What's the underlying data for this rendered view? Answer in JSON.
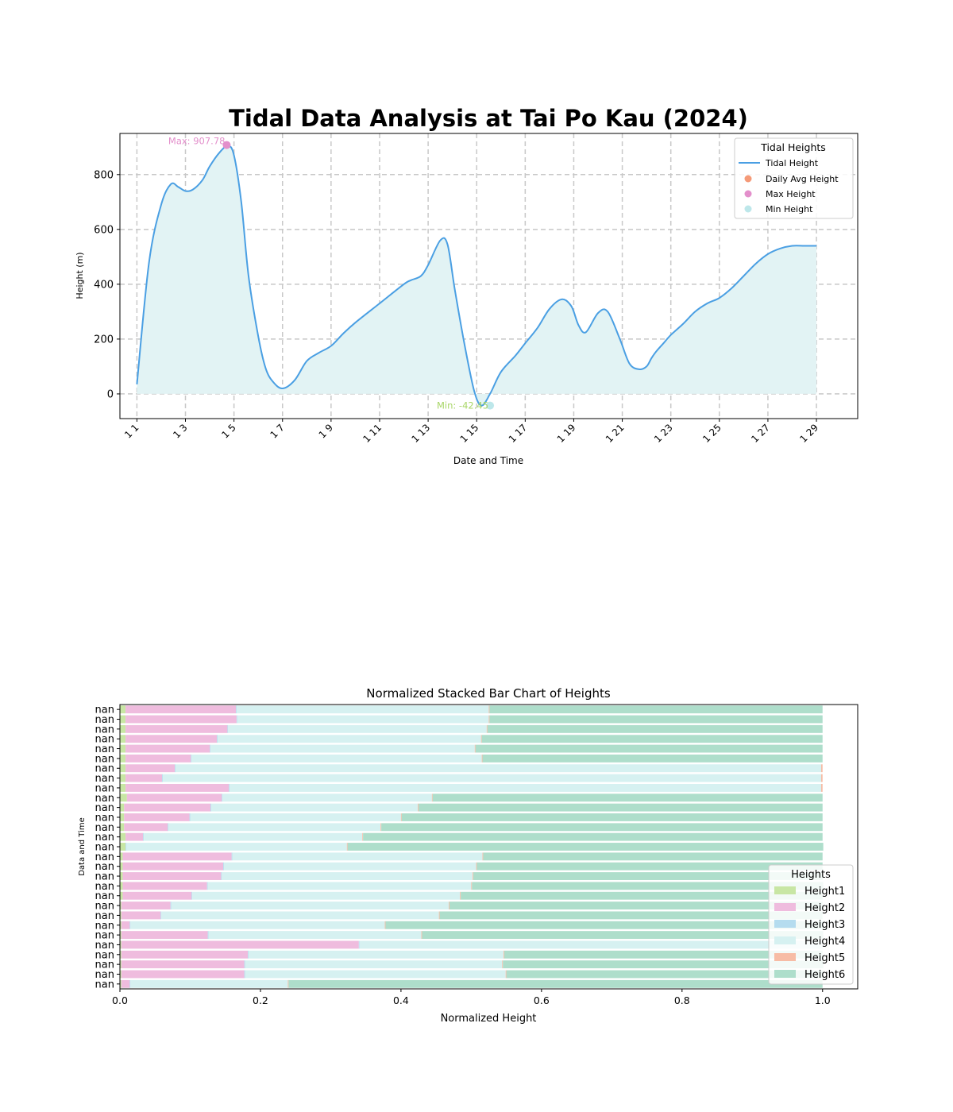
{
  "chart_data": [
    {
      "type": "line",
      "title": "Tidal Data Analysis at Tai Po Kau (2024)",
      "xlabel": "Date and Time",
      "ylabel": "Height (m)",
      "x_ticks": [
        "1 1",
        "1 3",
        "1 5",
        "1 7",
        "1 9",
        "1 11",
        "1 13",
        "1 15",
        "1 17",
        "1 19",
        "1 21",
        "1 23",
        "1 25",
        "1 27",
        "1 29"
      ],
      "y_ticks": [
        0,
        200,
        400,
        600,
        800
      ],
      "xlim_days": [
        0.3,
        30.7
      ],
      "ylim": [
        -90,
        950
      ],
      "grid": true,
      "legend": {
        "title": "Tidal Heights",
        "placement": "top-right",
        "entries": [
          "Tidal Height",
          "Daily Avg Height",
          "Max Height",
          "Min Height"
        ]
      },
      "colors": {
        "line": "#4a9fe3",
        "fill": "#e2f3f4",
        "avg": "#f59a78",
        "max": "#e38fcb",
        "min": "#bde7ea",
        "max_label": "#e38fcb",
        "min_label": "#a8d667"
      },
      "series": [
        {
          "name": "Tidal Height",
          "day": [
            1,
            1.5,
            2,
            2.4,
            2.7,
            3,
            3.3,
            3.7,
            4,
            4.4,
            4.75,
            5,
            5.3,
            5.6,
            6,
            6.3,
            6.6,
            7,
            7.5,
            8,
            8.5,
            9,
            9.5,
            10,
            11,
            12,
            12.3,
            12.7,
            13,
            13.5,
            13.8,
            14.1,
            14.5,
            14.9,
            15.2,
            15.55,
            16,
            16.6,
            17,
            17.5,
            18,
            18.5,
            18.9,
            19.2,
            19.5,
            20,
            20.4,
            20.9,
            21.3,
            21.7,
            22,
            22.2,
            22.4,
            22.7,
            23,
            23.5,
            24,
            24.5,
            25,
            25.5,
            26,
            26.5,
            27,
            27.5,
            28,
            28.5,
            29
          ],
          "height": [
            35,
            480,
            690,
            765,
            755,
            740,
            745,
            780,
            830,
            880,
            905,
            870,
            700,
            430,
            210,
            95,
            45,
            20,
            50,
            120,
            150,
            175,
            220,
            260,
            330,
            400,
            415,
            430,
            470,
            560,
            545,
            380,
            180,
            10,
            -42.45,
            0,
            80,
            140,
            185,
            240,
            310,
            345,
            320,
            250,
            225,
            295,
            300,
            200,
            110,
            90,
            100,
            130,
            155,
            185,
            215,
            255,
            300,
            330,
            350,
            385,
            430,
            475,
            510,
            530,
            540,
            540,
            540
          ]
        }
      ],
      "annotations": [
        {
          "label": "Max: 907.78",
          "day": 4.7,
          "value": 907.78
        },
        {
          "label": "Min: -42.45",
          "day": 15.55,
          "value": -42.45
        }
      ]
    },
    {
      "type": "bar",
      "orientation": "horizontal",
      "stacked": "normalized",
      "title": "Normalized Stacked Bar Chart of Heights",
      "xlabel": "Normalized Height",
      "ylabel": "Data and Time",
      "xlim": [
        0,
        1.05
      ],
      "x_ticks": [
        "0.0",
        "0.2",
        "0.4",
        "0.6",
        "0.8",
        "1.0"
      ],
      "categories": [
        "nan",
        "nan",
        "nan",
        "nan",
        "nan",
        "nan",
        "nan",
        "nan",
        "nan",
        "nan",
        "nan",
        "nan",
        "nan",
        "nan",
        "nan",
        "nan",
        "nan",
        "nan",
        "nan",
        "nan",
        "nan",
        "nan",
        "nan",
        "nan",
        "nan",
        "nan",
        "nan",
        "nan",
        "nan"
      ],
      "legend": {
        "title": "Heights",
        "placement": "lower-right"
      },
      "series": [
        {
          "name": "Height1",
          "color": "#c8e6a4",
          "values": [
            0.008,
            0.008,
            0.008,
            0.008,
            0.008,
            0.008,
            0.008,
            0.008,
            0.008,
            0.01,
            0.006,
            0.006,
            0.006,
            0.008,
            0.008,
            0.004,
            0.004,
            0.004,
            0.004,
            0.004,
            0.002,
            0.002,
            0.002,
            0.002,
            0.002,
            0.002,
            0.002,
            0.002,
            0.002
          ]
        },
        {
          "name": "Height2",
          "color": "#efbcde",
          "values": [
            0.157,
            0.158,
            0.145,
            0.13,
            0.12,
            0.093,
            0.07,
            0.052,
            0.147,
            0.135,
            0.123,
            0.093,
            0.062,
            0.025,
            0.0,
            0.155,
            0.143,
            0.14,
            0.12,
            0.098,
            0.07,
            0.056,
            0.012,
            0.123,
            0.338,
            0.18,
            0.175,
            0.175,
            0.012
          ]
        },
        {
          "name": "Height3",
          "color": "#b5dcef",
          "values": [
            0.001,
            0.001,
            0.001,
            0.001,
            0.001,
            0.001,
            0.001,
            0.001,
            0.001,
            0.001,
            0.001,
            0.001,
            0.001,
            0.001,
            0.001,
            0.001,
            0.001,
            0.001,
            0.001,
            0.001,
            0.001,
            0.001,
            0.001,
            0.001,
            0.001,
            0.001,
            0.001,
            0.001,
            0.001
          ]
        },
        {
          "name": "Height4",
          "color": "#d6f1f1",
          "values": [
            0.359,
            0.358,
            0.368,
            0.375,
            0.376,
            0.413,
            0.919,
            0.937,
            0.842,
            0.298,
            0.294,
            0.3,
            0.302,
            0.311,
            0.314,
            0.356,
            0.359,
            0.357,
            0.375,
            0.381,
            0.395,
            0.395,
            0.362,
            0.303,
            0.659,
            0.363,
            0.366,
            0.371,
            0.224
          ]
        },
        {
          "name": "Height5",
          "color": "#f7bca5",
          "values": [
            0.001,
            0.001,
            0.001,
            0.001,
            0.001,
            0.001,
            0.002,
            0.002,
            0.002,
            0.001,
            0.001,
            0.001,
            0.001,
            0.001,
            0.001,
            0.001,
            0.001,
            0.001,
            0.001,
            0.001,
            0.001,
            0.001,
            0.001,
            0.001,
            0.0,
            0.001,
            0.001,
            0.001,
            0.001
          ]
        },
        {
          "name": "Height6",
          "color": "#aedecb",
          "values": [
            0.474,
            0.474,
            0.477,
            0.485,
            0.494,
            0.484,
            0.0,
            0.0,
            0.0,
            0.555,
            0.575,
            0.599,
            0.628,
            0.654,
            0.677,
            0.483,
            0.492,
            0.497,
            0.5,
            0.515,
            0.531,
            0.545,
            0.623,
            0.571,
            0.0,
            0.453,
            0.456,
            0.451,
            0.76
          ]
        }
      ]
    }
  ]
}
